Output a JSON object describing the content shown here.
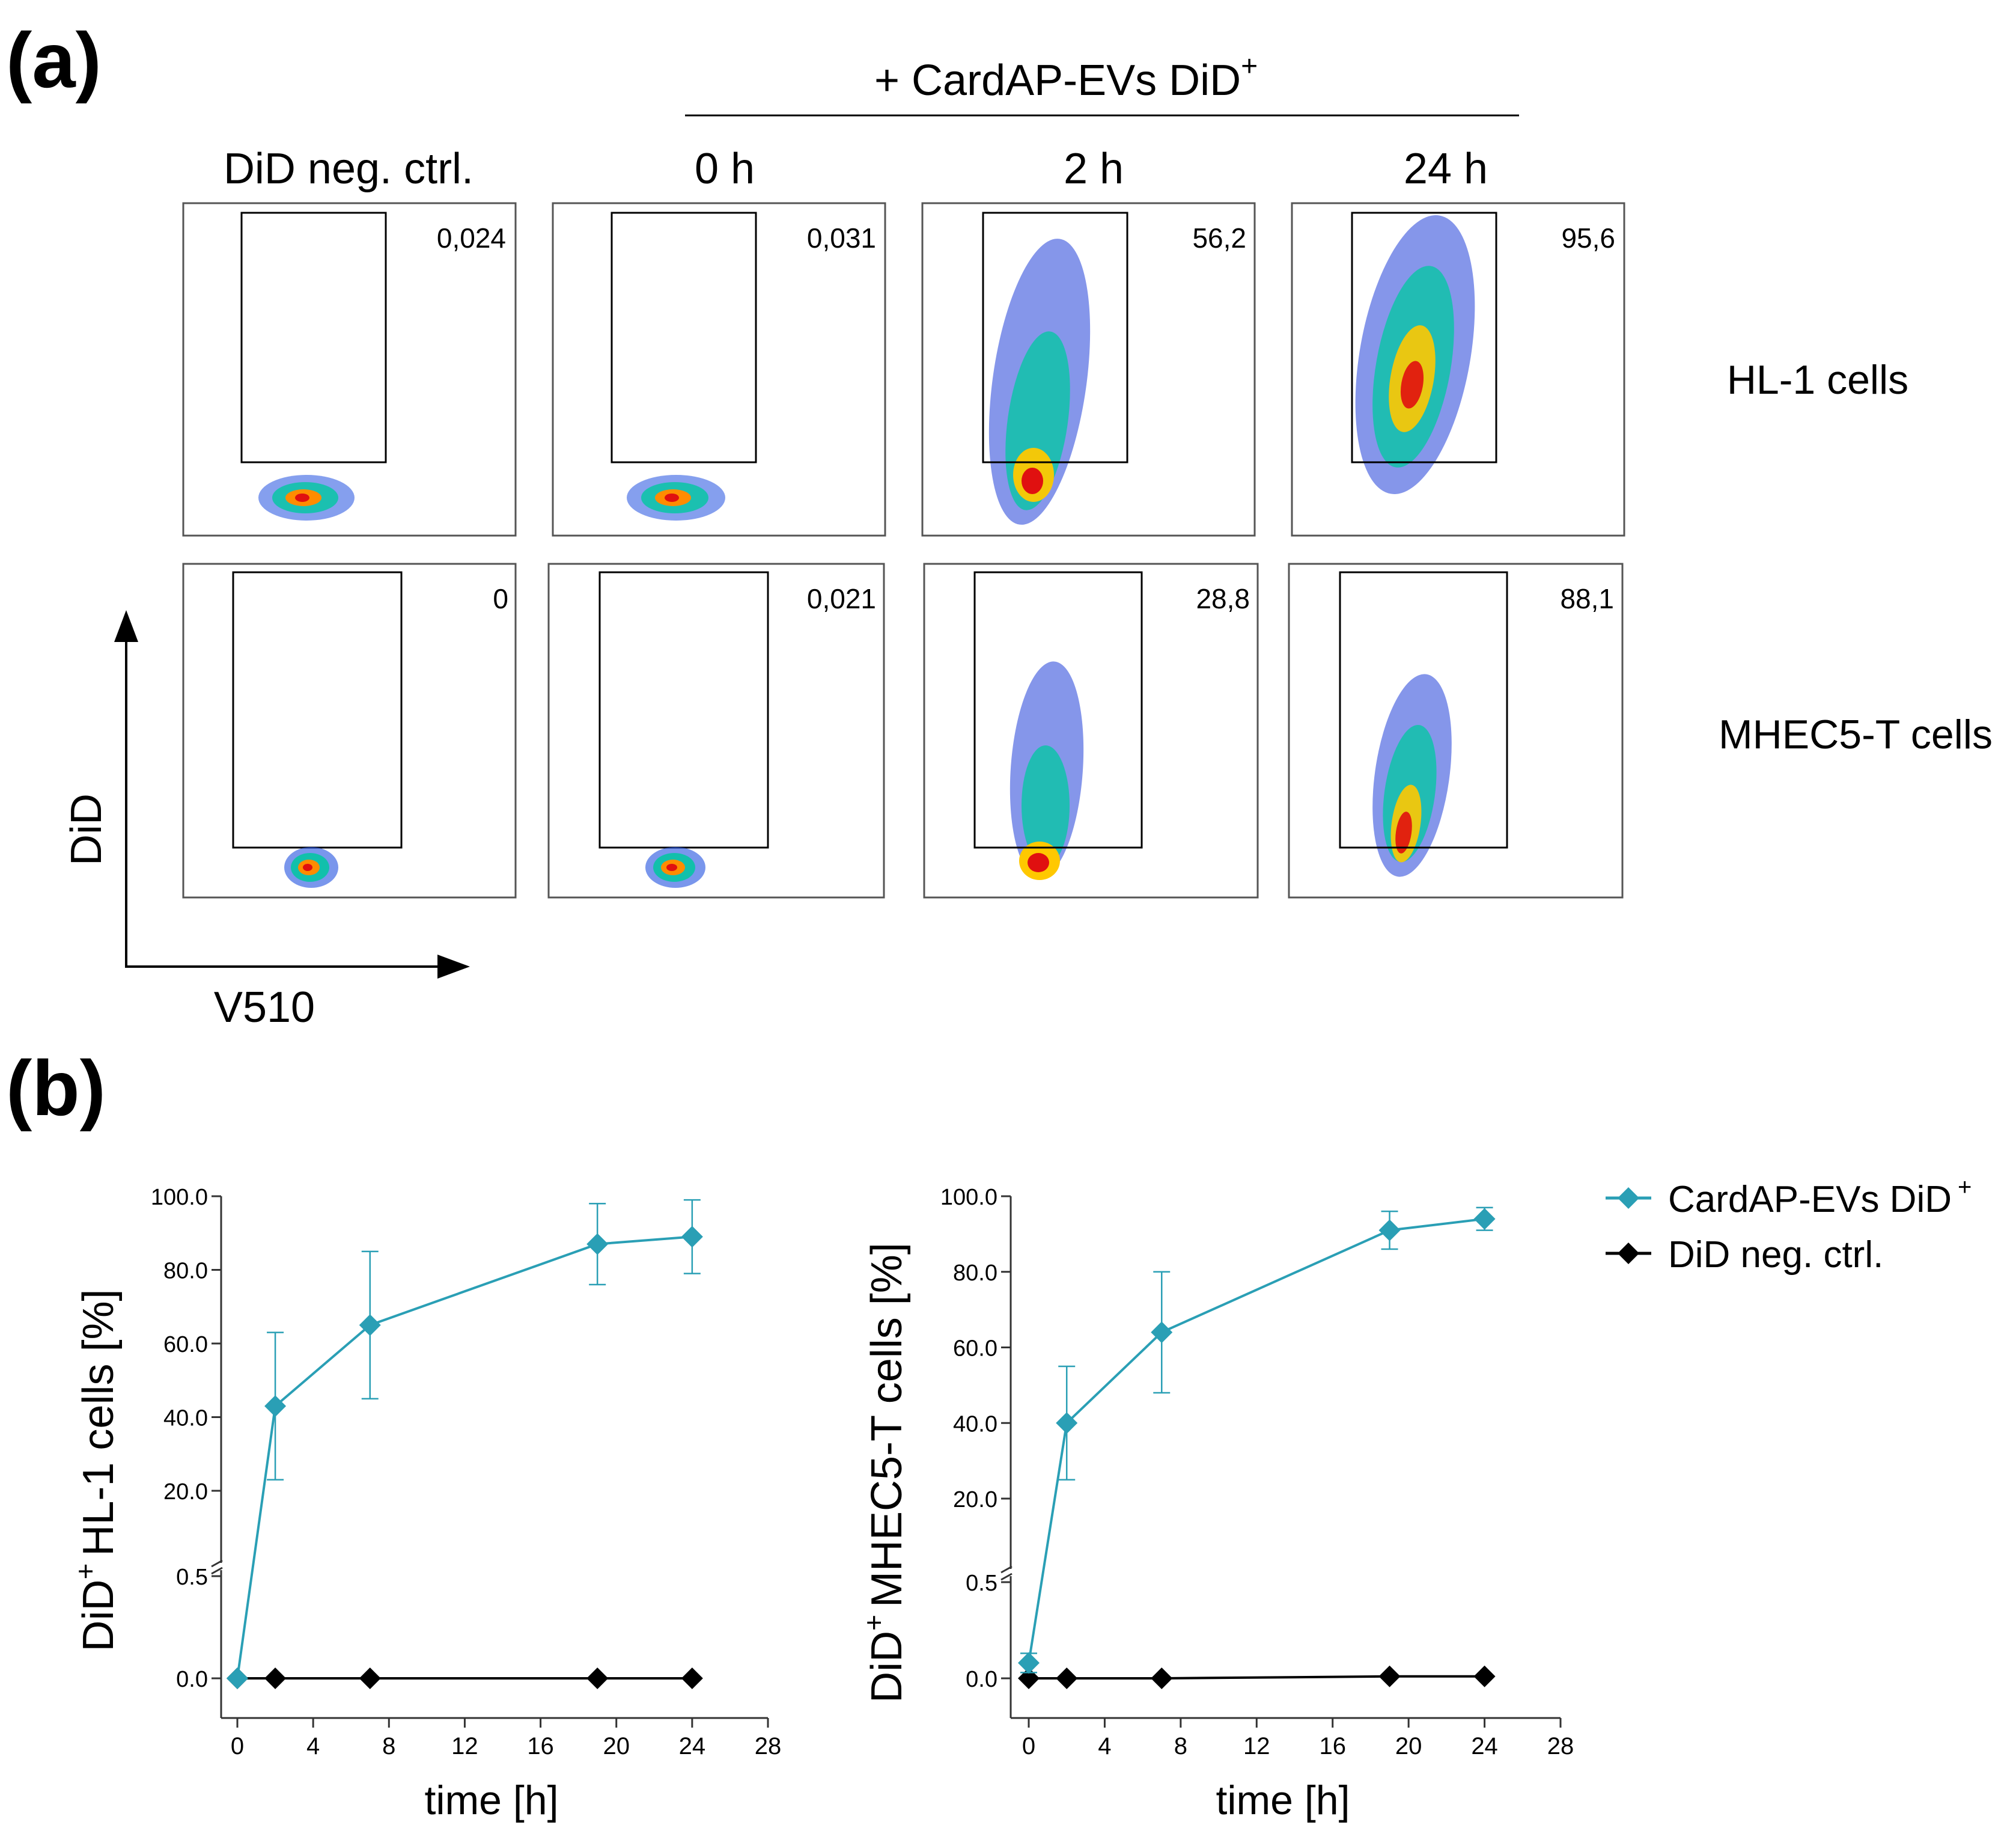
{
  "panel_a": {
    "letter": "(a)",
    "treatment_label": "+ CardAP-EVs DiD",
    "treatment_superscript": "+",
    "column_headers": [
      "DiD neg. ctrl.",
      "0 h",
      "2 h",
      "24 h"
    ],
    "row_labels": [
      "HL-1 cells",
      "MHEC5-T cells"
    ],
    "gate_values": [
      [
        "0,024",
        "0,031",
        "56,2",
        "95,6"
      ],
      [
        "0",
        "0,021",
        "28,8",
        "88,1"
      ]
    ],
    "y_axis_label": "DiD",
    "x_axis_label": "V510"
  },
  "panel_b": {
    "letter": "(b)",
    "legend": [
      {
        "label": "CardAP-EVs DiD",
        "superscript": "+",
        "color": "#2a9fb5"
      },
      {
        "label": "DiD neg. ctrl.",
        "superscript": "",
        "color": "#000000"
      }
    ]
  },
  "chart_data": [
    {
      "type": "line",
      "title": "",
      "xlabel": "time [h]",
      "ylabel_prefix": "DiD",
      "ylabel_superscript": "+",
      "ylabel_rest": "HL-1 cells [%]",
      "xlim": [
        0,
        28
      ],
      "x_ticks": [
        "0",
        "4",
        "8",
        "12",
        "16",
        "20",
        "24",
        "28"
      ],
      "y_ticks_upper": [
        "20.0",
        "40.0",
        "60.0",
        "80.0",
        "100.0"
      ],
      "y_ticks_lower": [
        "0.0",
        "0.5"
      ],
      "y_axis_break": true,
      "x": [
        0,
        2,
        7,
        19,
        24
      ],
      "series": [
        {
          "name": "CardAP-EVs DiD+",
          "color": "#2a9fb5",
          "values": [
            0.0,
            43.0,
            65.0,
            87.0,
            89.0
          ],
          "error": [
            0,
            20,
            20,
            11,
            10
          ]
        },
        {
          "name": "DiD neg. ctrl.",
          "color": "#000000",
          "values": [
            0.0,
            0.0,
            0.0,
            0.0,
            0.0
          ],
          "error": [
            0,
            0,
            0,
            0,
            0
          ]
        }
      ]
    },
    {
      "type": "line",
      "title": "",
      "xlabel": "time [h]",
      "ylabel_prefix": "DiD",
      "ylabel_superscript": "+",
      "ylabel_rest": "MHEC5-T cells [%]",
      "xlim": [
        0,
        28
      ],
      "x_ticks": [
        "0",
        "4",
        "8",
        "12",
        "16",
        "20",
        "24",
        "28"
      ],
      "y_ticks_upper": [
        "20.0",
        "40.0",
        "60.0",
        "80.0",
        "100.0"
      ],
      "y_ticks_lower": [
        "0.0",
        "0.5"
      ],
      "y_axis_break": true,
      "x": [
        0,
        2,
        7,
        19,
        24
      ],
      "series": [
        {
          "name": "CardAP-EVs DiD+",
          "color": "#2a9fb5",
          "values": [
            0.08,
            40.0,
            64.0,
            91.0,
            94.0
          ],
          "error": [
            0.05,
            15,
            16,
            5,
            3
          ]
        },
        {
          "name": "DiD neg. ctrl.",
          "color": "#000000",
          "values": [
            0.0,
            0.0,
            0.0,
            0.01,
            0.01
          ],
          "error": [
            0,
            0,
            0,
            0,
            0
          ]
        }
      ]
    }
  ]
}
